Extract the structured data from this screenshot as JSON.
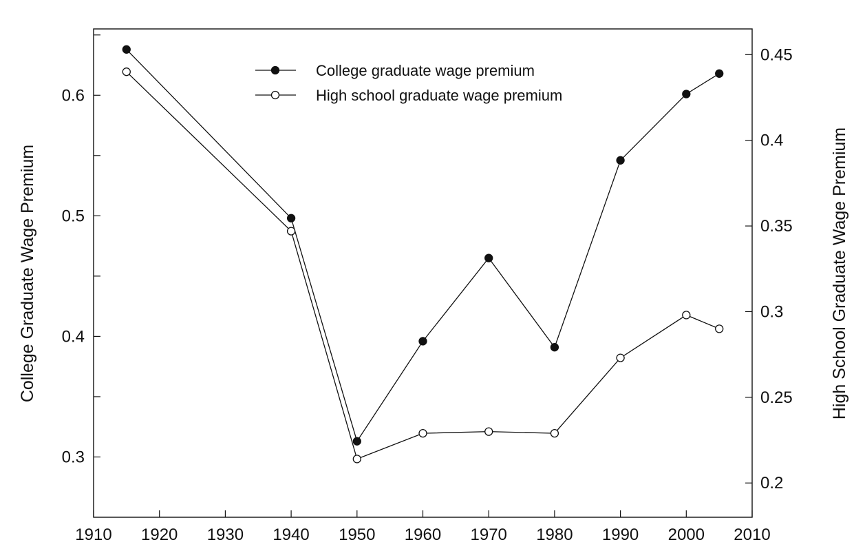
{
  "chart_data": {
    "type": "line",
    "title": "",
    "xlabel": "",
    "ylabel_left": "College Graduate Wage Premium",
    "ylabel_right": "High School Graduate Wage Premium",
    "xlim": [
      1910,
      2010
    ],
    "ylim_left": [
      0.25,
      0.655
    ],
    "ylim_right": [
      0.18,
      0.465
    ],
    "x_ticks": [
      1910,
      1920,
      1930,
      1940,
      1950,
      1960,
      1970,
      1980,
      1990,
      2000,
      2010
    ],
    "y_left_major": [
      0.3,
      0.4,
      0.5,
      0.6
    ],
    "y_left_minor": [
      0.35,
      0.45,
      0.55,
      0.65
    ],
    "y_right_ticks": [
      0.2,
      0.25,
      0.3,
      0.35,
      0.4,
      0.45
    ],
    "grid": false,
    "legend_position": "top-center",
    "series": [
      {
        "name": "College graduate wage premium",
        "axis": "left",
        "marker": "filled-circle",
        "x": [
          1915,
          1940,
          1950,
          1960,
          1970,
          1980,
          1990,
          2000,
          2005
        ],
        "y": [
          0.638,
          0.498,
          0.313,
          0.396,
          0.465,
          0.391,
          0.546,
          0.601,
          0.618
        ]
      },
      {
        "name": "High school graduate wage premium",
        "axis": "right",
        "marker": "open-circle",
        "x": [
          1915,
          1940,
          1950,
          1960,
          1970,
          1980,
          1990,
          2000,
          2005
        ],
        "y": [
          0.44,
          0.347,
          0.214,
          0.229,
          0.23,
          0.229,
          0.273,
          0.298,
          0.29
        ]
      }
    ]
  }
}
